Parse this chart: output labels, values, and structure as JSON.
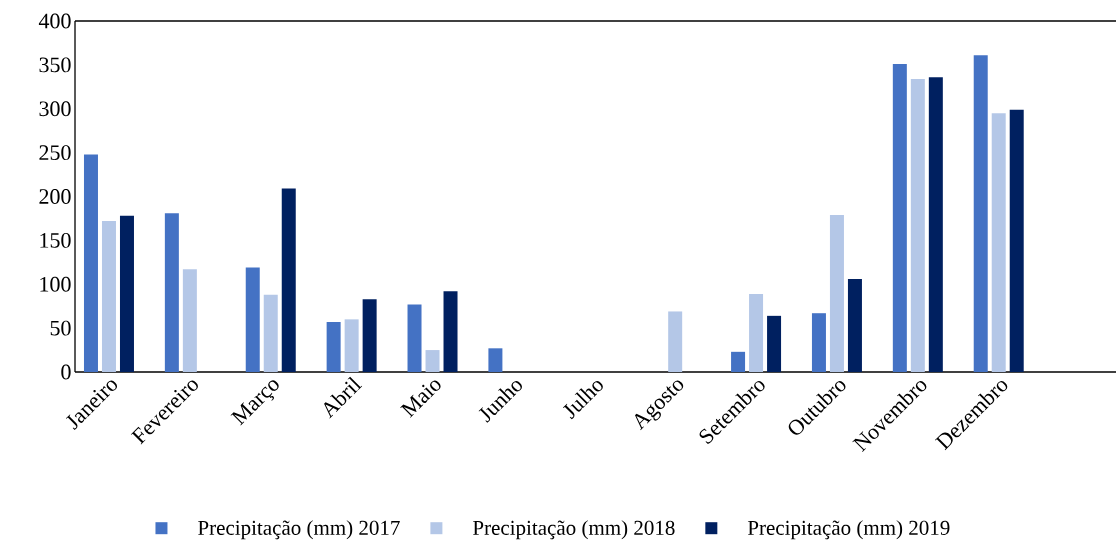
{
  "chart_data": {
    "type": "bar",
    "categories": [
      "Janeiro",
      "Fevereiro",
      "Março",
      "Abril",
      "Maio",
      "Junho",
      "Julho",
      "Agosto",
      "Setembro",
      "Outubro",
      "Novembro",
      "Dezembro"
    ],
    "series": [
      {
        "name": "Precipitação (mm) 2017",
        "color": "#4472c4",
        "values": [
          248,
          181,
          119,
          57,
          77,
          27,
          null,
          null,
          23,
          67,
          351,
          361
        ]
      },
      {
        "name": "Precipitação (mm) 2018",
        "color": "#b4c7e7",
        "values": [
          172,
          117,
          88,
          60,
          25,
          null,
          null,
          69,
          89,
          179,
          334,
          295
        ]
      },
      {
        "name": "Precipitação (mm) 2019",
        "color": "#002060",
        "values": [
          178,
          null,
          209,
          83,
          92,
          null,
          null,
          null,
          64,
          106,
          336,
          299
        ]
      }
    ],
    "ylim": [
      0,
      400
    ],
    "yticks": [
      0,
      50,
      100,
      150,
      200,
      250,
      300,
      350,
      400
    ],
    "grid": false,
    "legend": "bottom"
  }
}
